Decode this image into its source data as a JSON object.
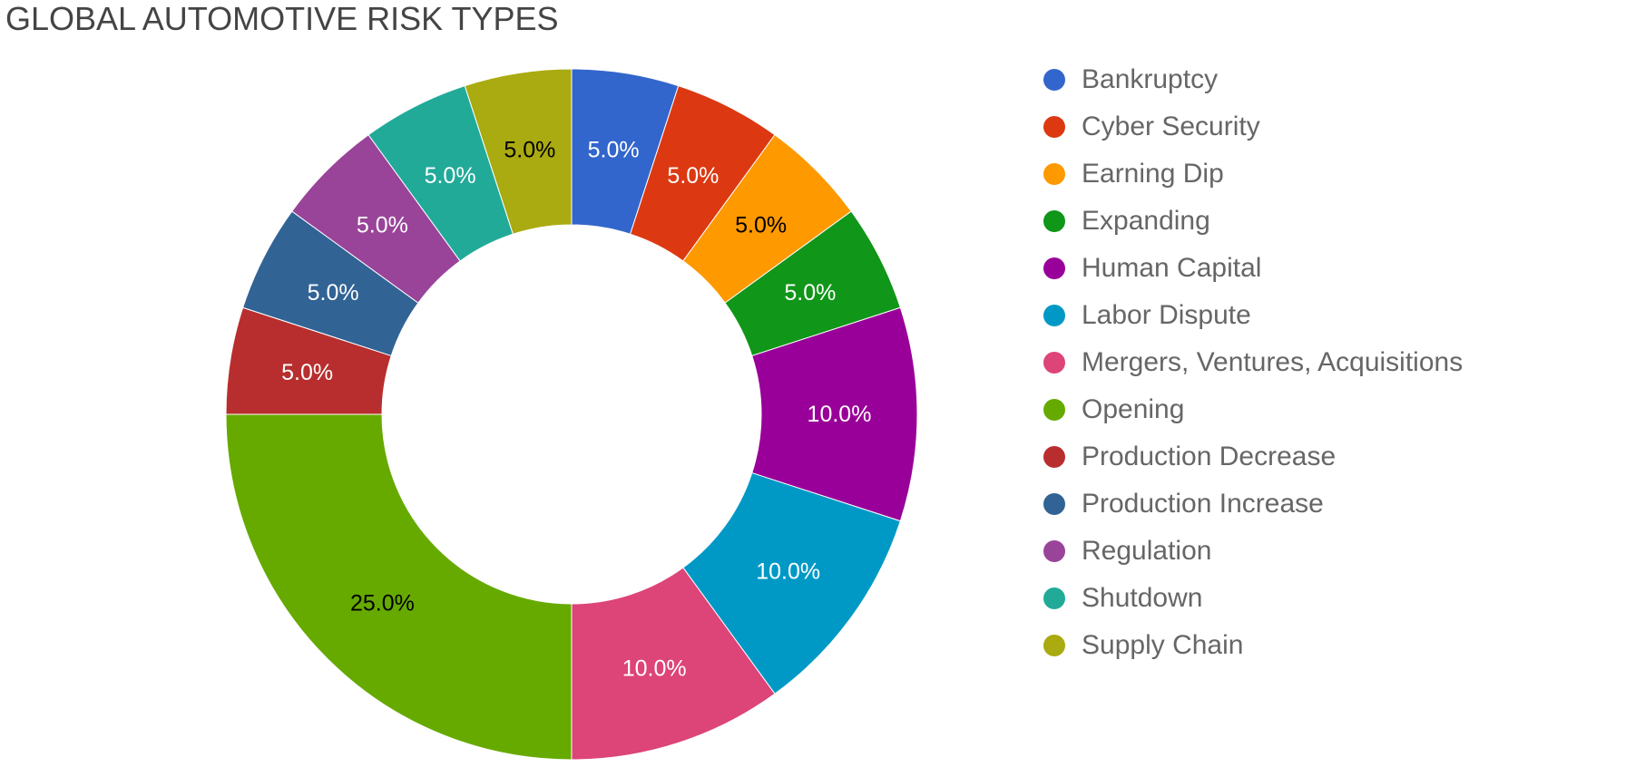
{
  "chart_data": {
    "type": "pie",
    "title": "GLOBAL AUTOMOTIVE RISK TYPES",
    "donut": true,
    "legend_position": "right",
    "categories": [
      "Bankruptcy",
      "Cyber Security",
      "Earning Dip",
      "Expanding",
      "Human Capital",
      "Labor Dispute",
      "Mergers, Ventures, Acquisitions",
      "Opening",
      "Production Decrease",
      "Production Increase",
      "Regulation",
      "Shutdown",
      "Supply Chain"
    ],
    "values": [
      5,
      5,
      5,
      5,
      10,
      10,
      10,
      25,
      5,
      5,
      5,
      5,
      5
    ],
    "data_labels": [
      "5.0%",
      "5.0%",
      "5.0%",
      "5.0%",
      "10.0%",
      "10.0%",
      "10.0%",
      "25.0%",
      "5.0%",
      "5.0%",
      "5.0%",
      "5.0%",
      "5.0%"
    ],
    "colors": [
      "#3366cc",
      "#dc3912",
      "#ff9900",
      "#109618",
      "#990099",
      "#0099c6",
      "#dd4477",
      "#66aa00",
      "#b82e2e",
      "#316395",
      "#994499",
      "#22aa99",
      "#aaaa11"
    ],
    "label_colors": [
      "#ffffff",
      "#ffffff",
      "#000000",
      "#ffffff",
      "#ffffff",
      "#ffffff",
      "#ffffff",
      "#000000",
      "#ffffff",
      "#ffffff",
      "#ffffff",
      "#ffffff",
      "#000000"
    ]
  }
}
